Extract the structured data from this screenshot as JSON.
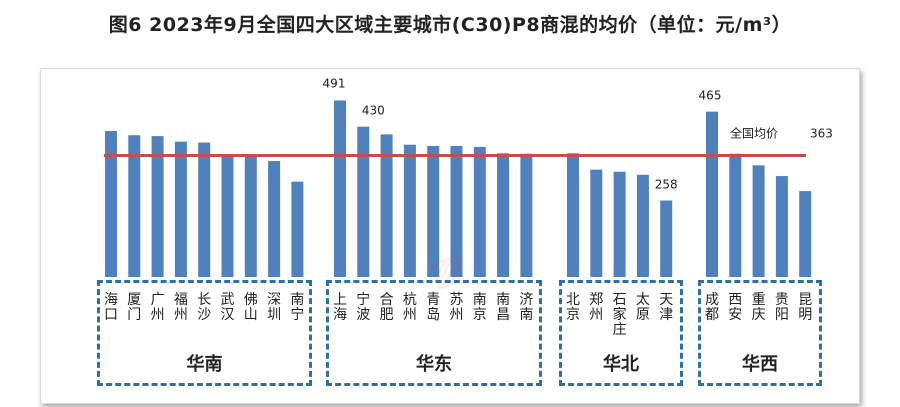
{
  "title": "图6 2023年9月全国四大区域主要城市(C30)P8商混的均价（单位：元/m³）",
  "chart_data": {
    "type": "bar",
    "title": "图6 2023年9月全国四大区域主要城市(C30)P8商混的均价（单位：元/m³）",
    "ylim": [
      0,
      520
    ],
    "bar_color": "#4f81bd",
    "avg_line_color": "#c0504d",
    "average": {
      "label": "全国均价",
      "value": 363,
      "value_text": "363"
    },
    "groups": [
      {
        "name": "华南",
        "cities": [
          "海口",
          "厦门",
          "广州",
          "福州",
          "长沙",
          "武汉",
          "佛山",
          "深圳",
          "南宁"
        ],
        "values": [
          420,
          410,
          408,
          395,
          393,
          365,
          363,
          350,
          302
        ]
      },
      {
        "name": "华东",
        "cities": [
          "上海",
          "宁波",
          "合肥",
          "杭州",
          "青岛",
          "苏州",
          "南京",
          "南昌",
          "济南"
        ],
        "values": [
          491,
          430,
          412,
          388,
          385,
          385,
          383,
          368,
          367
        ]
      },
      {
        "name": "华北",
        "cities": [
          "北京",
          "郑州",
          "石家庄",
          "太原",
          "天津"
        ],
        "values": [
          368,
          330,
          325,
          318,
          258
        ]
      },
      {
        "name": "华西",
        "cities": [
          "成都",
          "西安",
          "重庆",
          "贵阳",
          "昆明"
        ],
        "values": [
          465,
          367,
          340,
          315,
          280
        ]
      }
    ],
    "data_labels": [
      {
        "city": "上海",
        "text": "491"
      },
      {
        "city": "宁波",
        "text": "430"
      },
      {
        "city": "天津",
        "text": "258"
      },
      {
        "city": "成都",
        "text": "465"
      }
    ]
  }
}
